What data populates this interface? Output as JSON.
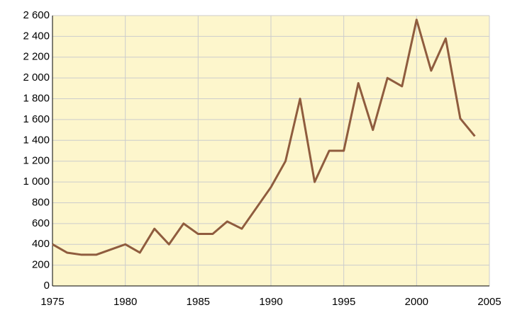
{
  "chart_data": {
    "type": "line",
    "x": [
      1975,
      1976,
      1977,
      1978,
      1979,
      1980,
      1981,
      1982,
      1983,
      1984,
      1985,
      1986,
      1987,
      1988,
      1989,
      1990,
      1991,
      1992,
      1993,
      1994,
      1995,
      1996,
      1997,
      1998,
      1999,
      2000,
      2001,
      2002,
      2003,
      2004
    ],
    "values": [
      400,
      320,
      300,
      300,
      350,
      400,
      320,
      550,
      400,
      600,
      500,
      500,
      620,
      550,
      750,
      950,
      1200,
      1800,
      1000,
      1300,
      1300,
      1950,
      1500,
      2000,
      1920,
      2560,
      2070,
      2380,
      1610,
      1440
    ],
    "color": "#8f5c3e",
    "background": "#fdf6cc",
    "xlim": [
      1975,
      2005
    ],
    "xticks": [
      1975,
      1980,
      1985,
      1990,
      1995,
      2000,
      2005
    ],
    "ylim": [
      0,
      2600
    ],
    "yticks": [
      0,
      200,
      400,
      600,
      800,
      {
        "value": 1000,
        "label": "1 000"
      },
      {
        "value": 1200,
        "label": "1 200"
      },
      {
        "value": 1400,
        "label": "1 400"
      },
      {
        "value": 1600,
        "label": "1 600"
      },
      {
        "value": 1800,
        "label": "1 800"
      },
      {
        "value": 2000,
        "label": "2 000"
      },
      {
        "value": 2200,
        "label": "2 200"
      },
      {
        "value": 2400,
        "label": "2 400"
      },
      {
        "value": 2600,
        "label": "2 600"
      }
    ],
    "grid": true
  }
}
